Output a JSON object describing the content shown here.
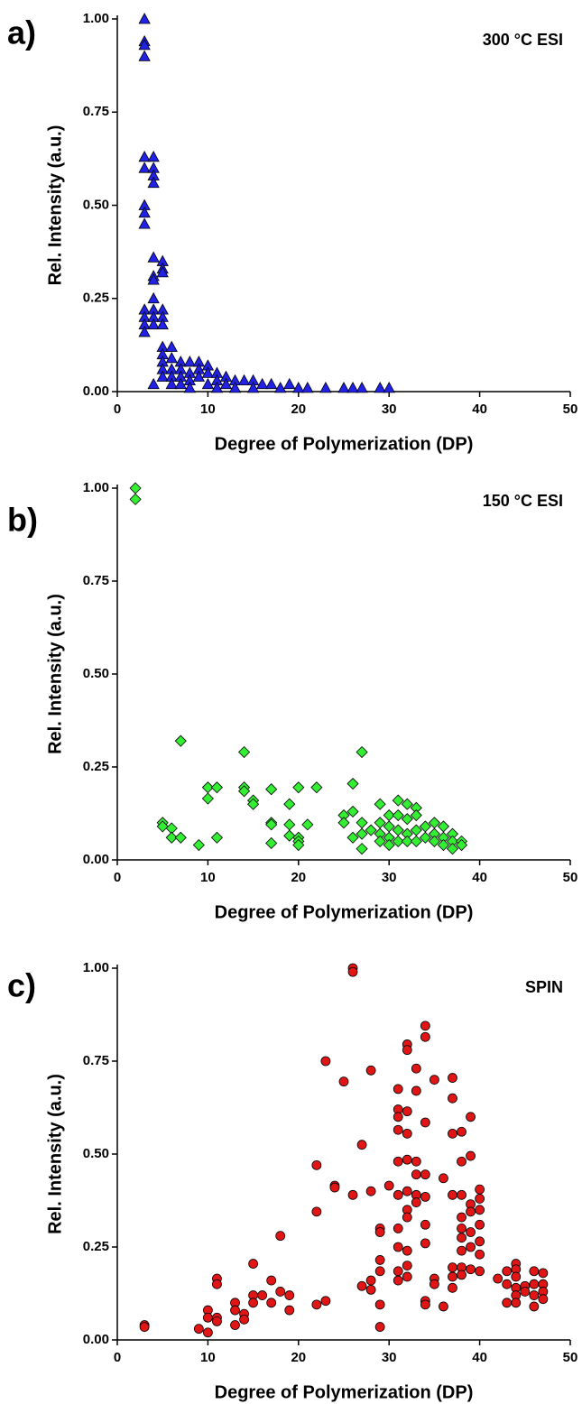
{
  "chart_data": [
    {
      "type": "scatter",
      "panel_label": "a)",
      "annotation": "300 °C ESI",
      "x_label": "Degree of Polymerization (DP)",
      "y_label": "Rel. Intensity (a.u.)",
      "marker": "triangle",
      "color": "#2222e6",
      "x": [
        3,
        3,
        3,
        3,
        3,
        3,
        3,
        3,
        3,
        3,
        3,
        3,
        3,
        4,
        4,
        4,
        4,
        4,
        4,
        4,
        4,
        4,
        4,
        4,
        4,
        5,
        5,
        5,
        5,
        5,
        5,
        5,
        5,
        5,
        5,
        5,
        6,
        6,
        6,
        6,
        6,
        7,
        7,
        7,
        7,
        8,
        8,
        8,
        8,
        9,
        9,
        9,
        10,
        10,
        10,
        11,
        11,
        11,
        12,
        12,
        13,
        13,
        14,
        15,
        15,
        16,
        17,
        18,
        19,
        20,
        21,
        23,
        25,
        26,
        27,
        29,
        30
      ],
      "values": [
        1.0,
        0.94,
        0.93,
        0.9,
        0.63,
        0.6,
        0.5,
        0.48,
        0.45,
        0.22,
        0.2,
        0.18,
        0.16,
        0.63,
        0.6,
        0.58,
        0.56,
        0.36,
        0.31,
        0.3,
        0.25,
        0.22,
        0.2,
        0.18,
        0.02,
        0.35,
        0.33,
        0.32,
        0.22,
        0.2,
        0.18,
        0.12,
        0.1,
        0.08,
        0.06,
        0.04,
        0.12,
        0.09,
        0.06,
        0.04,
        0.02,
        0.08,
        0.06,
        0.04,
        0.02,
        0.08,
        0.05,
        0.03,
        0.01,
        0.08,
        0.06,
        0.04,
        0.07,
        0.05,
        0.02,
        0.05,
        0.03,
        0.01,
        0.04,
        0.02,
        0.03,
        0.01,
        0.03,
        0.03,
        0.01,
        0.02,
        0.02,
        0.01,
        0.02,
        0.01,
        0.01,
        0.01,
        0.01,
        0.01,
        0.01,
        0.01,
        0.01
      ],
      "xlim": [
        0,
        50
      ],
      "xticks": [
        0,
        10,
        20,
        30,
        40,
        50
      ],
      "ylim": [
        0,
        1
      ],
      "yticks": [
        {
          "value": 0,
          "label": "0.00"
        },
        {
          "value": 0.25,
          "label": "0.25"
        },
        {
          "value": 0.5,
          "label": "0.50"
        },
        {
          "value": 0.75,
          "label": "0.75"
        },
        {
          "value": 1,
          "label": "1.00"
        }
      ]
    },
    {
      "type": "scatter",
      "panel_label": "b)",
      "annotation": "150 °C ESI",
      "x_label": "Degree of Polymerization (DP)",
      "y_label": "Rel. Intensity (a.u.)",
      "marker": "diamond",
      "color": "#33ee33",
      "x": [
        2,
        2,
        5,
        5,
        6,
        6,
        7,
        7,
        9,
        10,
        10,
        11,
        11,
        14,
        14,
        14,
        15,
        15,
        17,
        17,
        17,
        17,
        19,
        19,
        19,
        20,
        20,
        20,
        20,
        21,
        22,
        25,
        25,
        26,
        26,
        26,
        27,
        27,
        27,
        27,
        28,
        29,
        29,
        29,
        29,
        30,
        30,
        30,
        30,
        31,
        31,
        31,
        31,
        32,
        32,
        32,
        32,
        33,
        33,
        33,
        33,
        34,
        34,
        35,
        35,
        35,
        36,
        36,
        36,
        37,
        37,
        37,
        38,
        38
      ],
      "values": [
        1.0,
        0.97,
        0.1,
        0.09,
        0.085,
        0.06,
        0.32,
        0.06,
        0.04,
        0.195,
        0.165,
        0.195,
        0.06,
        0.29,
        0.195,
        0.185,
        0.16,
        0.15,
        0.19,
        0.1,
        0.095,
        0.045,
        0.15,
        0.095,
        0.065,
        0.195,
        0.06,
        0.05,
        0.04,
        0.095,
        0.195,
        0.12,
        0.1,
        0.205,
        0.13,
        0.06,
        0.29,
        0.1,
        0.07,
        0.03,
        0.08,
        0.15,
        0.1,
        0.07,
        0.05,
        0.12,
        0.09,
        0.06,
        0.04,
        0.16,
        0.12,
        0.08,
        0.05,
        0.15,
        0.11,
        0.07,
        0.05,
        0.14,
        0.12,
        0.08,
        0.05,
        0.09,
        0.06,
        0.1,
        0.07,
        0.05,
        0.09,
        0.06,
        0.04,
        0.07,
        0.05,
        0.03,
        0.05,
        0.04
      ],
      "xlim": [
        0,
        50
      ],
      "xticks": [
        0,
        10,
        20,
        30,
        40,
        50
      ],
      "ylim": [
        0,
        1
      ],
      "yticks": [
        {
          "value": 0,
          "label": "0.00"
        },
        {
          "value": 0.25,
          "label": "0.25"
        },
        {
          "value": 0.5,
          "label": "0.50"
        },
        {
          "value": 0.75,
          "label": "0.75"
        },
        {
          "value": 1,
          "label": "1.00"
        }
      ]
    },
    {
      "type": "scatter",
      "panel_label": "c)",
      "annotation": "SPIN",
      "x_label": "Degree of Polymerization (DP)",
      "y_label": "Rel. Intensity (a.u.)",
      "marker": "circle",
      "color": "#e01515",
      "x": [
        3,
        3,
        9,
        10,
        10,
        10,
        11,
        11,
        11,
        11,
        13,
        13,
        13,
        14,
        14,
        15,
        15,
        15,
        16,
        17,
        17,
        18,
        18,
        19,
        19,
        22,
        22,
        22,
        23,
        23,
        24,
        24,
        25,
        26,
        26,
        26,
        27,
        27,
        28,
        28,
        28,
        28,
        29,
        29,
        29,
        29,
        29,
        29,
        30,
        31,
        31,
        31,
        31,
        31,
        31,
        31,
        31,
        31,
        31,
        32,
        32,
        32,
        32,
        32,
        32,
        32,
        32,
        32,
        32,
        32,
        33,
        33,
        33,
        33,
        33,
        33,
        34,
        34,
        34,
        34,
        34,
        34,
        34,
        34,
        34,
        35,
        35,
        35,
        36,
        36,
        37,
        37,
        37,
        37,
        37,
        37,
        37,
        38,
        38,
        38,
        38,
        38,
        38,
        38,
        38,
        38,
        39,
        39,
        39,
        39,
        39,
        39,
        39,
        40,
        40,
        40,
        40,
        40,
        40,
        40,
        42,
        43,
        43,
        43,
        44,
        44,
        44,
        44,
        44,
        44,
        45,
        45,
        46,
        46,
        46,
        46,
        47,
        47,
        47,
        47
      ],
      "values": [
        0.04,
        0.035,
        0.03,
        0.08,
        0.06,
        0.02,
        0.165,
        0.15,
        0.06,
        0.05,
        0.1,
        0.08,
        0.04,
        0.07,
        0.055,
        0.205,
        0.12,
        0.1,
        0.12,
        0.16,
        0.1,
        0.28,
        0.13,
        0.12,
        0.08,
        0.47,
        0.345,
        0.095,
        0.75,
        0.105,
        0.415,
        0.41,
        0.695,
        1.0,
        0.99,
        0.39,
        0.525,
        0.145,
        0.725,
        0.4,
        0.16,
        0.135,
        0.3,
        0.29,
        0.215,
        0.185,
        0.095,
        0.035,
        0.415,
        0.675,
        0.62,
        0.6,
        0.565,
        0.48,
        0.39,
        0.3,
        0.25,
        0.185,
        0.16,
        0.795,
        0.78,
        0.615,
        0.555,
        0.485,
        0.4,
        0.35,
        0.33,
        0.24,
        0.2,
        0.17,
        0.73,
        0.67,
        0.48,
        0.445,
        0.39,
        0.37,
        0.845,
        0.815,
        0.585,
        0.445,
        0.385,
        0.31,
        0.26,
        0.105,
        0.095,
        0.7,
        0.165,
        0.15,
        0.435,
        0.09,
        0.705,
        0.65,
        0.555,
        0.39,
        0.195,
        0.17,
        0.14,
        0.56,
        0.48,
        0.39,
        0.33,
        0.3,
        0.275,
        0.24,
        0.195,
        0.175,
        0.6,
        0.495,
        0.365,
        0.345,
        0.29,
        0.25,
        0.19,
        0.405,
        0.38,
        0.35,
        0.31,
        0.265,
        0.23,
        0.185,
        0.165,
        0.185,
        0.15,
        0.1,
        0.205,
        0.19,
        0.17,
        0.14,
        0.12,
        0.1,
        0.145,
        0.13,
        0.185,
        0.15,
        0.12,
        0.09,
        0.18,
        0.15,
        0.13,
        0.11
      ],
      "xlim": [
        0,
        50
      ],
      "xticks": [
        0,
        10,
        20,
        30,
        40,
        50
      ],
      "ylim": [
        0,
        1
      ],
      "yticks": [
        {
          "value": 0,
          "label": "0.00"
        },
        {
          "value": 0.25,
          "label": "0.25"
        },
        {
          "value": 0.5,
          "label": "0.50"
        },
        {
          "value": 0.75,
          "label": "0.75"
        },
        {
          "value": 1,
          "label": "1.00"
        }
      ]
    }
  ]
}
